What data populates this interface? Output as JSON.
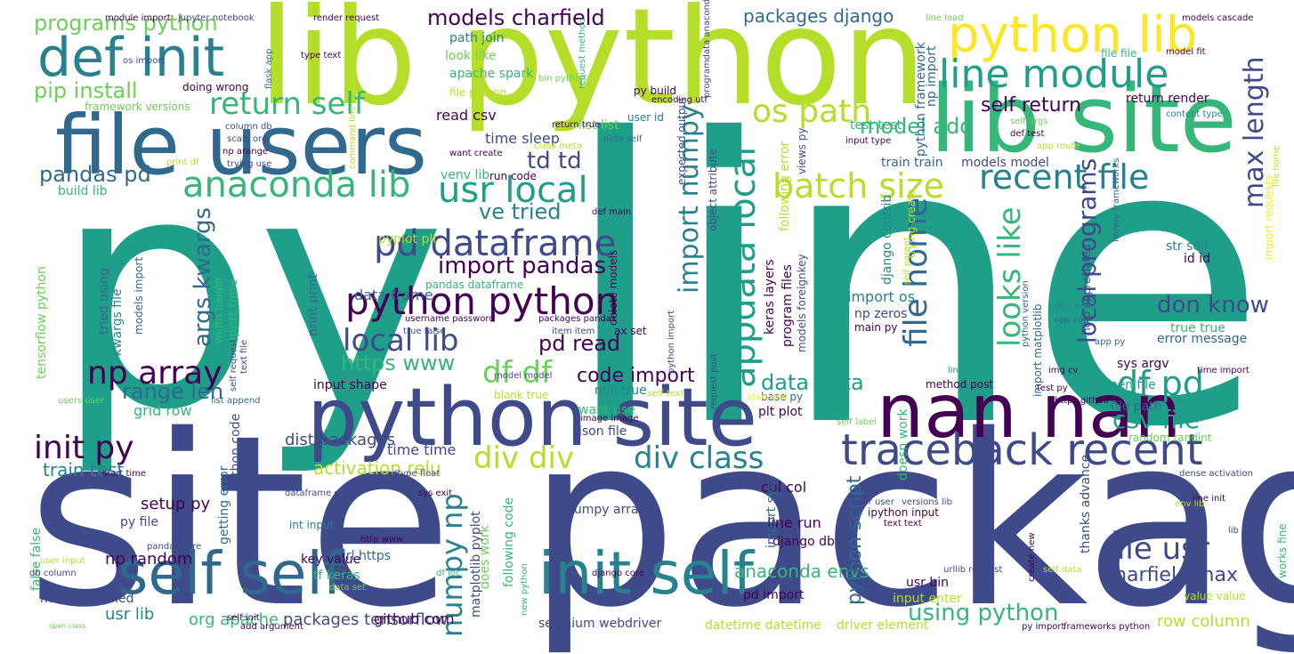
{
  "palette": {
    "dark_purple": "#440154",
    "indigo": "#3e4a89",
    "blue": "#31688e",
    "teal_blue": "#26828e",
    "teal": "#1f9e89",
    "green": "#35b779",
    "light_green": "#6ece58",
    "lime": "#b5de2b",
    "yellow": "#fde725"
  },
  "words": [
    {
      "text": "line",
      "color": "#1f9e89"
    },
    {
      "text": "py",
      "color": "#1f9e89"
    },
    {
      "text": "site packages",
      "color": "#3e4a89"
    },
    {
      "text": "lib python",
      "color": "#b5de2b"
    },
    {
      "text": "file users",
      "color": "#31688e"
    },
    {
      "text": "lib site",
      "color": "#35b779"
    },
    {
      "text": "python site",
      "color": "#3e4a89"
    },
    {
      "text": "nan nan",
      "color": "#440154"
    },
    {
      "text": "python lib",
      "color": "#fde725"
    },
    {
      "text": "def init",
      "color": "#26828e"
    },
    {
      "text": "self self",
      "color": "#31688e"
    },
    {
      "text": "init self",
      "color": "#26828e"
    },
    {
      "text": "traceback recent",
      "color": "#3e4a89"
    },
    {
      "text": "line module",
      "color": "#1f9e89"
    },
    {
      "text": "pd dataframe",
      "color": "#3e4a89"
    },
    {
      "text": "python python",
      "color": "#440154"
    },
    {
      "text": "anaconda lib",
      "color": "#35b779"
    },
    {
      "text": "usr local",
      "color": "#1f9e89"
    },
    {
      "text": "batch size",
      "color": "#b5de2b"
    },
    {
      "text": "recent file",
      "color": "#26828e"
    },
    {
      "text": "return self",
      "color": "#35b779"
    },
    {
      "text": "os path",
      "color": "#b5de2b"
    },
    {
      "text": "appdata local",
      "color": "#1f9e89"
    },
    {
      "text": "file home",
      "color": "#31688e"
    },
    {
      "text": "looks like",
      "color": "#35b779"
    },
    {
      "text": "df pd",
      "color": "#1f9e89"
    },
    {
      "text": "div class",
      "color": "#26828e"
    },
    {
      "text": "div div",
      "color": "#b5de2b"
    },
    {
      "text": "df df",
      "color": "#6ece58"
    },
    {
      "text": "np array",
      "color": "#440154"
    },
    {
      "text": "local lib",
      "color": "#3e4a89"
    },
    {
      "text": "init py",
      "color": "#440154"
    },
    {
      "text": "file usr",
      "color": "#3e4a89"
    },
    {
      "text": "numpy np",
      "color": "#26828e"
    },
    {
      "text": "import numpy",
      "color": "#26828e"
    },
    {
      "text": "max length",
      "color": "#3e4a89"
    },
    {
      "text": "csv file",
      "color": "#1f9e89"
    },
    {
      "text": "local programs",
      "color": "#3e4a89"
    },
    {
      "text": "don know",
      "color": "#3e4a89"
    },
    {
      "text": "using python",
      "color": "#35b779"
    },
    {
      "text": "import pandas",
      "color": "#440154"
    },
    {
      "text": "args kwargs",
      "color": "#31688e"
    },
    {
      "text": "pip install",
      "color": "#6ece58"
    },
    {
      "text": "programs python",
      "color": "#6ece58"
    },
    {
      "text": "models charfield",
      "color": "#440154"
    },
    {
      "text": "packages django",
      "color": "#31688e"
    },
    {
      "text": "pandas pd",
      "color": "#31688e"
    },
    {
      "text": "ve tried",
      "color": "#26828e"
    },
    {
      "text": "td td",
      "color": "#3e4a89"
    },
    {
      "text": "model add",
      "color": "#35b779"
    },
    {
      "text": "self return",
      "color": "#440154"
    },
    {
      "text": "https www",
      "color": "#35b779"
    },
    {
      "text": "range len",
      "color": "#31688e"
    },
    {
      "text": "data data",
      "color": "#1f9e89"
    },
    {
      "text": "pd read",
      "color": "#440154"
    },
    {
      "text": "code import",
      "color": "#440154"
    },
    {
      "text": "charfield max",
      "color": "#3e4a89"
    },
    {
      "text": "anaconda envs",
      "color": "#35b779"
    },
    {
      "text": "python script",
      "color": "#31688e"
    },
    {
      "text": "activation relu",
      "color": "#b5de2b"
    },
    {
      "text": "dist packages",
      "color": "#3e4a89"
    },
    {
      "text": "train test",
      "color": "#26828e"
    },
    {
      "text": "setup py",
      "color": "#440154"
    },
    {
      "text": "np random",
      "color": "#440154"
    },
    {
      "text": "usr lib",
      "color": "#26828e"
    },
    {
      "text": "org apache",
      "color": "#35b779"
    },
    {
      "text": "packages tensorflow",
      "color": "#3e4a89"
    },
    {
      "text": "github com",
      "color": "#440154"
    },
    {
      "text": "selenium webdriver",
      "color": "#3e4a89"
    },
    {
      "text": "datetime datetime",
      "color": "#b5de2b"
    },
    {
      "text": "driver element",
      "color": "#b5de2b"
    },
    {
      "text": "row column",
      "color": "#b5de2b"
    },
    {
      "text": "python dist",
      "color": "#3e4a89"
    },
    {
      "text": "line run",
      "color": "#440154"
    },
    {
      "text": "django db",
      "color": "#440154"
    },
    {
      "text": "usr bin",
      "color": "#440154"
    },
    {
      "text": "input enter",
      "color": "#b5de2b"
    },
    {
      "text": "pd import",
      "color": "#440154"
    },
    {
      "text": "col col",
      "color": "#440154"
    },
    {
      "text": "numpy array",
      "color": "#3e4a89"
    },
    {
      "text": "time time",
      "color": "#3e4a89"
    },
    {
      "text": "json file",
      "color": "#3e4a89"
    },
    {
      "text": "want use",
      "color": "#35b779"
    },
    {
      "text": "null true",
      "color": "#26828e"
    },
    {
      "text": "input shape",
      "color": "#440154"
    },
    {
      "text": "grid row",
      "color": "#35b779"
    },
    {
      "text": "data frame",
      "color": "#31688e"
    },
    {
      "text": "print print",
      "color": "#31688e"
    },
    {
      "text": "pandas dataframe",
      "color": "#35b779"
    },
    {
      "text": "pyplot plt",
      "color": "#b5de2b"
    },
    {
      "text": "run code",
      "color": "#440154"
    },
    {
      "text": "venv lib",
      "color": "#35b779"
    },
    {
      "text": "time sleep",
      "color": "#3e4a89"
    },
    {
      "text": "list list",
      "color": "#6ece58"
    },
    {
      "text": "read csv",
      "color": "#440154"
    },
    {
      "text": "path join",
      "color": "#26828e"
    },
    {
      "text": "look like",
      "color": "#6ece58"
    },
    {
      "text": "apache spark",
      "color": "#35b779"
    },
    {
      "text": "file python",
      "color": "#b5de2b"
    },
    {
      "text": "build lib",
      "color": "#35b779"
    },
    {
      "text": "import time",
      "color": "#35b779"
    },
    {
      "text": "delete models",
      "color": "#440154"
    },
    {
      "text": "test test",
      "color": "#35b779"
    },
    {
      "text": "train train",
      "color": "#31688e"
    },
    {
      "text": "models model",
      "color": "#3e4a89"
    },
    {
      "text": "return render",
      "color": "#440154"
    },
    {
      "text": "import os",
      "color": "#26828e"
    },
    {
      "text": "np zeros",
      "color": "#3e4a89"
    },
    {
      "text": "main py",
      "color": "#440154"
    },
    {
      "text": "error message",
      "color": "#31688e"
    },
    {
      "text": "true true",
      "color": "#35b779"
    },
    {
      "text": "sys argv",
      "color": "#440154"
    },
    {
      "text": "open file",
      "color": "#1f9e89"
    },
    {
      "text": "method post",
      "color": "#440154"
    },
    {
      "text": "file path",
      "color": "#31688e"
    },
    {
      "text": "random randint",
      "color": "#6ece58"
    },
    {
      "text": "str self",
      "color": "#26828e"
    },
    {
      "text": "id id",
      "color": "#440154"
    },
    {
      "text": "plt plot",
      "color": "#440154"
    },
    {
      "text": "base py",
      "color": "#31688e"
    },
    {
      "text": "doing wrong",
      "color": "#440154"
    },
    {
      "text": "framework versions",
      "color": "#6ece58"
    },
    {
      "text": "width height",
      "color": "#35b779"
    },
    {
      "text": "kwargs file",
      "color": "#26828e"
    },
    {
      "text": "tried using",
      "color": "#31688e"
    },
    {
      "text": "models import",
      "color": "#31688e"
    },
    {
      "text": "tensorflow python",
      "color": "#6ece58"
    },
    {
      "text": "python code",
      "color": "#3e4a89"
    },
    {
      "text": "getting error",
      "color": "#31688e"
    },
    {
      "text": "url https",
      "color": "#31688e"
    },
    {
      "text": "int input",
      "color": "#26828e"
    },
    {
      "text": "key value",
      "color": "#440154"
    },
    {
      "text": "tf keras",
      "color": "#35b779"
    },
    {
      "text": "py file",
      "color": "#3e4a89"
    },
    {
      "text": "false false",
      "color": "#35b779"
    },
    {
      "text": "module named",
      "color": "#3e4a89"
    },
    {
      "text": "does work",
      "color": "#6ece58"
    },
    {
      "text": "matplotlib pyplot",
      "color": "#3e4a89"
    },
    {
      "text": "following code",
      "color": "#35b779"
    },
    {
      "text": "import sys",
      "color": "#31688e"
    },
    {
      "text": "thanks advance",
      "color": "#3e4a89"
    },
    {
      "text": "ipython input",
      "color": "#440154"
    },
    {
      "text": "works fine",
      "color": "#35b779"
    },
    {
      "text": "value value",
      "color": "#b5de2b"
    },
    {
      "text": "keras layers",
      "color": "#440154"
    },
    {
      "text": "program files",
      "color": "#440154"
    },
    {
      "text": "models foreignkey",
      "color": "#3e4a89"
    },
    {
      "text": "following error",
      "color": "#b5de2b"
    },
    {
      "text": "django contrib",
      "color": "#26828e"
    },
    {
      "text": "doesn work",
      "color": "#35b779"
    },
    {
      "text": "import matplotlib",
      "color": "#31688e"
    },
    {
      "text": "help appreciated",
      "color": "#3e4a89"
    },
    {
      "text": "python framework",
      "color": "#31688e"
    },
    {
      "text": "np import",
      "color": "#31688e"
    },
    {
      "text": "jupyter notebook",
      "color": "#3e4a89"
    },
    {
      "text": "module import",
      "color": "#440154"
    },
    {
      "text": "type text",
      "color": "#440154"
    },
    {
      "text": "os import",
      "color": "#3e4a89"
    },
    {
      "text": "flask app",
      "color": "#31688e"
    },
    {
      "text": "render request",
      "color": "#440154"
    },
    {
      "text": "want create",
      "color": "#440154"
    },
    {
      "text": "bin python",
      "color": "#6ece58"
    },
    {
      "text": "data self",
      "color": "#31688e"
    },
    {
      "text": "py build",
      "color": "#440154"
    },
    {
      "text": "user id",
      "color": "#26828e"
    },
    {
      "text": "encoding utf",
      "color": "#440154"
    },
    {
      "text": "model fit",
      "color": "#440154"
    },
    {
      "text": "file file",
      "color": "#35b779"
    },
    {
      "text": "models cascade",
      "color": "#440154"
    },
    {
      "text": "line load",
      "color": "#6ece58"
    },
    {
      "text": "content type",
      "color": "#26828e"
    },
    {
      "text": "expected output",
      "color": "#3e4a89"
    },
    {
      "text": "object attribute",
      "color": "#3e4a89"
    },
    {
      "text": "views py",
      "color": "#3e4a89"
    },
    {
      "text": "app route",
      "color": "#b5de2b"
    },
    {
      "text": "def test",
      "color": "#440154"
    },
    {
      "text": "self args",
      "color": "#6ece58"
    },
    {
      "text": "input type",
      "color": "#440154"
    },
    {
      "text": "trying create",
      "color": "#b5de2b"
    },
    {
      "text": "library frameworks",
      "color": "#31688e"
    },
    {
      "text": "import requests",
      "color": "#fde725"
    },
    {
      "text": "column db",
      "color": "#3e4a89"
    },
    {
      "text": "scala org",
      "color": "#3e4a89"
    },
    {
      "text": "np arange",
      "color": "#440154"
    },
    {
      "text": "trying use",
      "color": "#3e4a89"
    },
    {
      "text": "print df",
      "color": "#b5de2b"
    },
    {
      "text": "def main",
      "color": "#440154"
    },
    {
      "text": "python version",
      "color": "#31688e"
    },
    {
      "text": "don want",
      "color": "#26828e"
    },
    {
      "text": "row row",
      "color": "#31688e"
    },
    {
      "text": "app py",
      "color": "#31688e"
    },
    {
      "text": "time import",
      "color": "#440154"
    },
    {
      "text": "img cv",
      "color": "#440154"
    },
    {
      "text": "line line",
      "color": "#1f9e89"
    },
    {
      "text": "test py",
      "color": "#440154"
    },
    {
      "text": "https github",
      "color": "#440154"
    },
    {
      "text": "username password",
      "color": "#440154"
    },
    {
      "text": "true false",
      "color": "#3e4a89"
    },
    {
      "text": "packages pandas",
      "color": "#440154"
    },
    {
      "text": "item item",
      "color": "#3e4a89"
    },
    {
      "text": "model model",
      "color": "#3e4a89"
    },
    {
      "text": "blank true",
      "color": "#b5de2b"
    },
    {
      "text": "image image",
      "color": "#440154"
    },
    {
      "text": "self text",
      "color": "#b5de2b"
    },
    {
      "text": "request post",
      "color": "#3e4a89"
    },
    {
      "text": "start end",
      "color": "#fde725"
    },
    {
      "text": "self label",
      "color": "#6ece58"
    },
    {
      "text": "ax set",
      "color": "#440154"
    },
    {
      "text": "self request",
      "color": "#3e4a89"
    },
    {
      "text": "users user",
      "color": "#6ece58"
    },
    {
      "text": "list append",
      "color": "#31688e"
    },
    {
      "text": "text file",
      "color": "#3e4a89"
    },
    {
      "text": "start time",
      "color": "#440154"
    },
    {
      "text": "dataframe df",
      "color": "#3e4a89"
    },
    {
      "text": "dtype float",
      "color": "#3e4a89"
    },
    {
      "text": "np nan",
      "color": "#3e4a89"
    },
    {
      "text": "http www",
      "color": "#440154"
    },
    {
      "text": "df loc",
      "color": "#35b779"
    },
    {
      "text": "pandas core",
      "color": "#3e4a89"
    },
    {
      "text": "user input",
      "color": "#b5de2b"
    },
    {
      "text": "db column",
      "color": "#3e4a89"
    },
    {
      "text": "span class",
      "color": "#6ece58"
    },
    {
      "text": "self init",
      "color": "#440154"
    },
    {
      "text": "add argument",
      "color": "#440154"
    },
    {
      "text": "data set",
      "color": "#6ece58"
    },
    {
      "text": "django core",
      "color": "#440154"
    },
    {
      "text": "new python",
      "color": "#35b779"
    },
    {
      "text": "sys exit",
      "color": "#440154"
    },
    {
      "text": "user user",
      "color": "#3e4a89"
    },
    {
      "text": "versions lib",
      "color": "#3e4a89"
    },
    {
      "text": "text text",
      "color": "#440154"
    },
    {
      "text": "urllib request",
      "color": "#3e4a89"
    },
    {
      "text": "self data",
      "color": "#b5de2b"
    },
    {
      "text": "create new",
      "color": "#440154"
    },
    {
      "text": "py import",
      "color": "#440154"
    },
    {
      "text": "frameworks python",
      "color": "#440154"
    },
    {
      "text": "env lib",
      "color": "#b5de2b"
    },
    {
      "text": "lib win",
      "color": "#3e4a89"
    },
    {
      "text": "line init",
      "color": "#440154"
    },
    {
      "text": "dense activation",
      "color": "#3e4a89"
    },
    {
      "text": "self parent",
      "color": "#b5de2b"
    },
    {
      "text": "request method",
      "color": "#35b779"
    },
    {
      "text": "programdata anaconda",
      "color": "#3e4a89"
    },
    {
      "text": "class meta",
      "color": "#b5de2b"
    },
    {
      "text": "return true",
      "color": "#440154"
    },
    {
      "text": "command line",
      "color": "#b5de2b"
    },
    {
      "text": "python import",
      "color": "#3e4a89"
    },
    {
      "text": "file home",
      "color": "#b5de2b"
    }
  ]
}
